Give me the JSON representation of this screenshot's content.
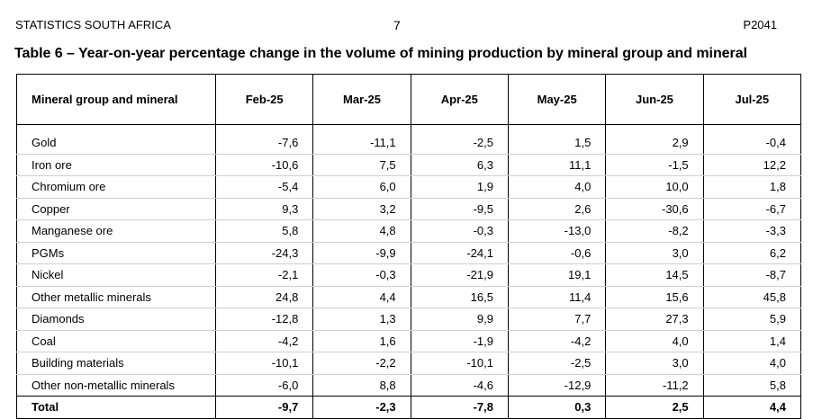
{
  "header": {
    "organization": "STATISTICS SOUTH AFRICA",
    "page_number": "7",
    "publication_code": "P2041"
  },
  "table": {
    "title": "Table 6 – Year-on-year percentage change in the volume of mining production by mineral group and mineral",
    "columns": [
      "Mineral group and mineral",
      "Feb-25",
      "Mar-25",
      "Apr-25",
      "May-25",
      "Jun-25",
      "Jul-25"
    ],
    "rows": [
      {
        "name": "Gold",
        "values": [
          "-7,6",
          "-11,1",
          "-2,5",
          "1,5",
          "2,9",
          "-0,4"
        ]
      },
      {
        "name": "Iron ore",
        "values": [
          "-10,6",
          "7,5",
          "6,3",
          "11,1",
          "-1,5",
          "12,2"
        ]
      },
      {
        "name": "Chromium ore",
        "values": [
          "-5,4",
          "6,0",
          "1,9",
          "4,0",
          "10,0",
          "1,8"
        ]
      },
      {
        "name": "Copper",
        "values": [
          "9,3",
          "3,2",
          "-9,5",
          "2,6",
          "-30,6",
          "-6,7"
        ]
      },
      {
        "name": "Manganese ore",
        "values": [
          "5,8",
          "4,8",
          "-0,3",
          "-13,0",
          "-8,2",
          "-3,3"
        ]
      },
      {
        "name": "PGMs",
        "values": [
          "-24,3",
          "-9,9",
          "-24,1",
          "-0,6",
          "3,0",
          "6,2"
        ]
      },
      {
        "name": "Nickel",
        "values": [
          "-2,1",
          "-0,3",
          "-21,9",
          "19,1",
          "14,5",
          "-8,7"
        ]
      },
      {
        "name": "Other metallic minerals",
        "values": [
          "24,8",
          "4,4",
          "16,5",
          "11,4",
          "15,6",
          "45,8"
        ]
      },
      {
        "name": "Diamonds",
        "values": [
          "-12,8",
          "1,3",
          "9,9",
          "7,7",
          "27,3",
          "5,9"
        ]
      },
      {
        "name": "Coal",
        "values": [
          "-4,2",
          "1,6",
          "-1,9",
          "-4,2",
          "4,0",
          "1,4"
        ]
      },
      {
        "name": "Building materials",
        "values": [
          "-10,1",
          "-2,2",
          "-10,1",
          "-2,5",
          "3,0",
          "4,0"
        ]
      },
      {
        "name": "Other non-metallic minerals",
        "values": [
          "-6,0",
          "8,8",
          "-4,6",
          "-12,9",
          "-11,2",
          "5,8"
        ]
      }
    ],
    "total": {
      "name": "Total",
      "values": [
        "-9,7",
        "-2,3",
        "-7,8",
        "0,3",
        "2,5",
        "4,4"
      ]
    }
  }
}
